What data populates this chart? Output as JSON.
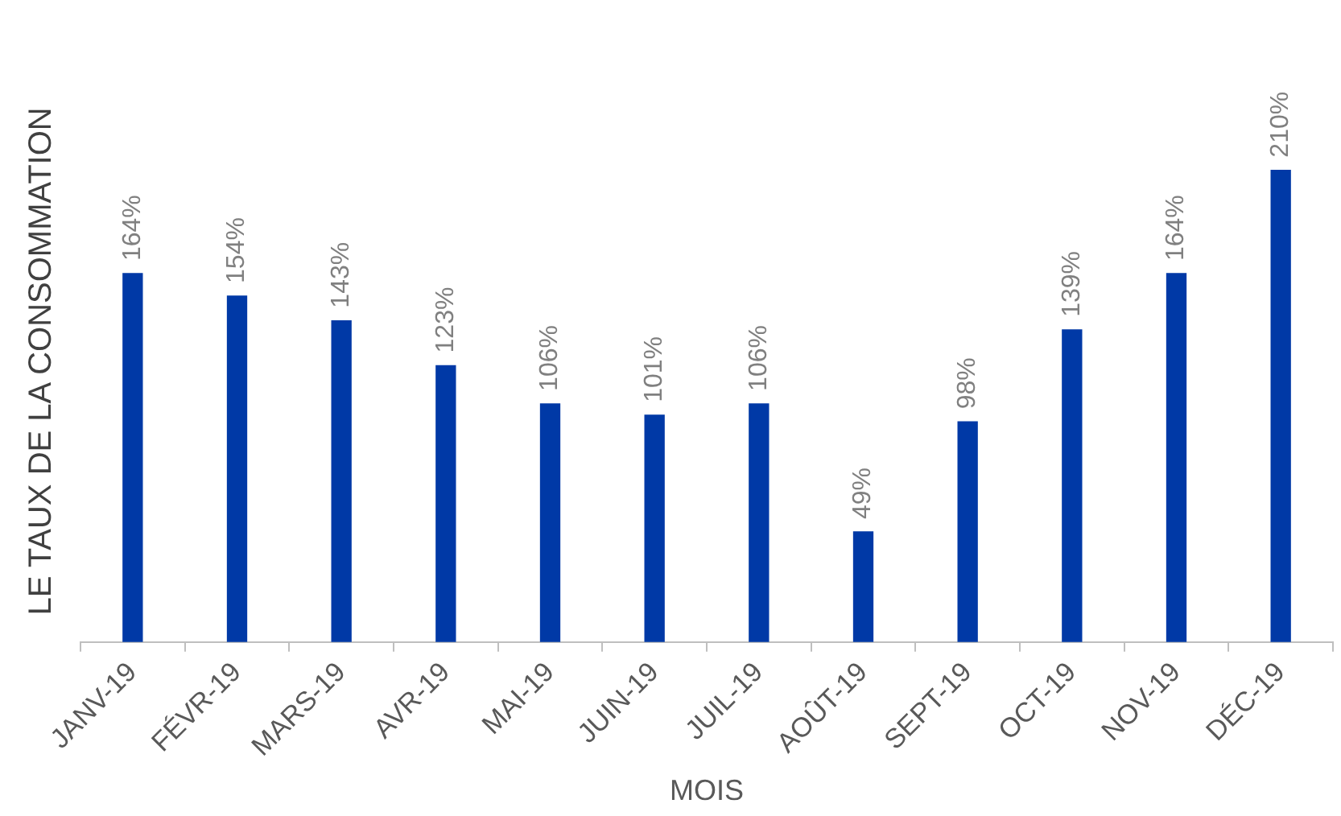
{
  "chart_data": {
    "type": "bar",
    "xlabel": "MOIS",
    "ylabel": "LE TAUX DE LA CONSOMMATION",
    "categories": [
      "JANV-19",
      "FÉVR-19",
      "MARS-19",
      "AVR-19",
      "MAI-19",
      "JUIN-19",
      "JUIL-19",
      "AOÛT-19",
      "SEPT-19",
      "OCT-19",
      "NOV-19",
      "DÉC-19"
    ],
    "values": [
      164,
      154,
      143,
      123,
      106,
      101,
      106,
      49,
      98,
      139,
      164,
      210
    ],
    "value_labels": [
      "164%",
      "154%",
      "143%",
      "123%",
      "106%",
      "101%",
      "106%",
      "49%",
      "98%",
      "139%",
      "164%",
      "210%"
    ],
    "color": "#0039a6",
    "grid": false,
    "legend": false
  }
}
